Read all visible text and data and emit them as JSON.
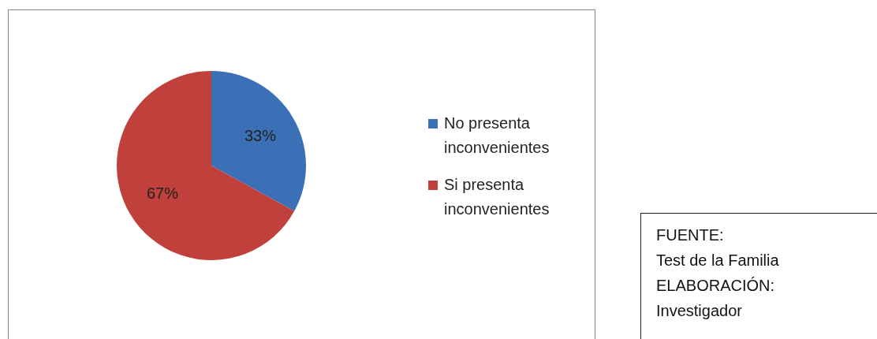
{
  "chart_data": {
    "type": "pie",
    "categories": [
      "No presenta inconvenientes",
      "Si presenta inconvenientes"
    ],
    "values": [
      33,
      67
    ],
    "colors": [
      "#3c70b6",
      "#c0403b"
    ],
    "value_labels": [
      "33%",
      "67%"
    ],
    "legend": "right",
    "annotations": [
      "FUENTE:",
      "Test de la Familia",
      "ELABORACIÓN:",
      "Investigador"
    ]
  }
}
